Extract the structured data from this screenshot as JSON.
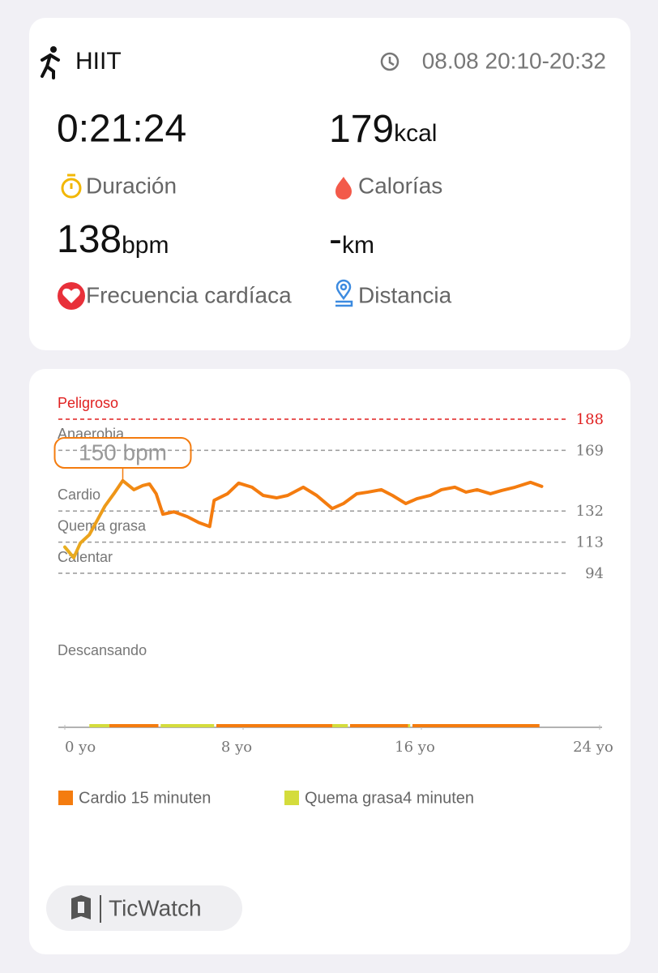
{
  "header": {
    "activity": "HIIT",
    "time": "08.08 20:10-20:32"
  },
  "stats": {
    "duration": {
      "value": "0:21:24",
      "label": "Duración"
    },
    "calories": {
      "value": 179,
      "unit": "kcal",
      "label": "Calorías"
    },
    "heart_rate": {
      "value": 138,
      "unit": "bpm",
      "label": "Frecuencia cardíaca"
    },
    "distance": {
      "value": "-",
      "unit": "km",
      "label": "Distancia"
    }
  },
  "chart_data": {
    "type": "line",
    "color": "#f47c0f",
    "xlim": [
      0,
      24
    ],
    "xticks": [
      {
        "value": 0,
        "label": "0 yo"
      },
      {
        "value": 8,
        "label": "8 yo"
      },
      {
        "value": 16,
        "label": "16 yo"
      },
      {
        "value": 24,
        "label": "24 yo"
      }
    ],
    "ylim": [
      94,
      188
    ],
    "zones": [
      {
        "name": "Peligroso",
        "value": 188,
        "color": "#e02020"
      },
      {
        "name": "Anaerobia",
        "value": 169,
        "color": "#888888"
      },
      {
        "name": "Cardio",
        "value": 132,
        "color": "#888888"
      },
      {
        "name": "Quema grasa",
        "value": 113,
        "color": "#888888"
      },
      {
        "name": "Calentar",
        "value": 94,
        "color": "#888888"
      }
    ],
    "rest_label": "Descansando",
    "tooltip": "150 bpm",
    "x": [
      0,
      0.4,
      0.7,
      1.1,
      1.5,
      1.8,
      2.2,
      2.6,
      3.1,
      3.5,
      3.8,
      4.1,
      4.4,
      4.9,
      5.5,
      6.0,
      6.5,
      6.7,
      7.3,
      7.8,
      8.4,
      8.9,
      9.5,
      10.0,
      10.7,
      11.3,
      12.0,
      12.5,
      13.1,
      13.6,
      14.2,
      14.7,
      15.3,
      15.8,
      16.4,
      16.9,
      17.5,
      18.0,
      18.5,
      19.1,
      19.6,
      20.2,
      20.9,
      21.4
    ],
    "values": [
      110,
      103.5,
      112.5,
      117.5,
      127.5,
      135,
      142.5,
      150.5,
      145,
      147.5,
      148.5,
      142.5,
      130,
      131.5,
      128.5,
      125,
      122.5,
      138.5,
      142.5,
      149,
      146.5,
      141.5,
      140,
      141.5,
      146.5,
      141.5,
      133.5,
      136.5,
      142.5,
      143.5,
      145,
      141.5,
      136.5,
      139.5,
      141.5,
      145,
      146.5,
      143.5,
      145,
      142.5,
      144.5,
      146.5,
      149.5,
      147
    ],
    "zone_segments": [
      {
        "start": 1.1,
        "end": 2.0,
        "legend": 1
      },
      {
        "start": 2.0,
        "end": 4.2,
        "legend": 0
      },
      {
        "start": 4.3,
        "end": 6.7,
        "legend": 1
      },
      {
        "start": 6.8,
        "end": 12.0,
        "legend": 0
      },
      {
        "start": 12.0,
        "end": 12.7,
        "legend": 1
      },
      {
        "start": 12.8,
        "end": 15.4,
        "legend": 0
      },
      {
        "start": 15.4,
        "end": 15.5,
        "legend": 1
      },
      {
        "start": 15.6,
        "end": 21.3,
        "legend": 0
      }
    ],
    "legend": [
      {
        "label": "Cardio 15 minuten",
        "color": "#f47c0f"
      },
      {
        "label": "Quema grasa4 minuten",
        "color": "#d4dc3c"
      }
    ]
  },
  "footer": {
    "brand": "TicWatch"
  }
}
